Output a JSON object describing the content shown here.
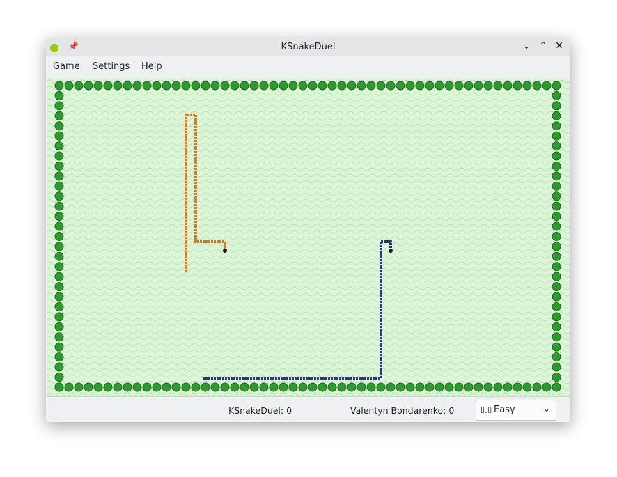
{
  "window": {
    "title": "KSnakeDuel",
    "app_icon": "ksnakeduel-icon",
    "pin_icon": "pin-icon"
  },
  "menu": {
    "items": [
      {
        "label": "Game"
      },
      {
        "label": "Settings"
      },
      {
        "label": "Help"
      }
    ]
  },
  "status": {
    "player1": "KSnakeDuel: 0",
    "player2": "Valentyn Bondarenko: 0",
    "difficulty": "Easy",
    "difficulty_icon": "signal-bars-icon"
  },
  "colors": {
    "field": "#dcf5d8",
    "border_bubble": "#2e9a2e",
    "snake1": "#e8741a",
    "snake2": "#2f3480",
    "head": "#1a1a1a"
  }
}
